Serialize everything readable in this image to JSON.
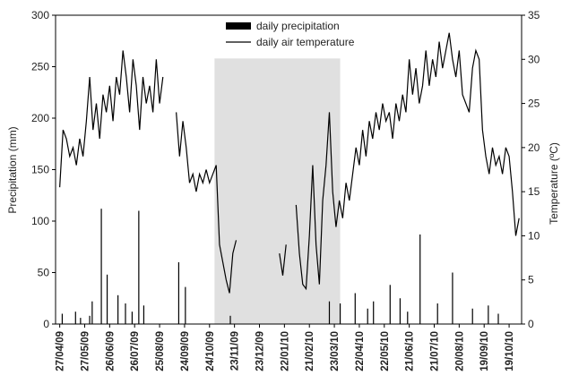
{
  "chart_data": {
    "type": "bar-line",
    "ylabel": "Precipitation (mm)",
    "y2label": "Temperature (ºC)",
    "xlim": [
      -5,
      555
    ],
    "xticks": [
      {
        "value": 0,
        "label": "27/04/09"
      },
      {
        "value": 30,
        "label": "27/05/09"
      },
      {
        "value": 60,
        "label": "26/06/09"
      },
      {
        "value": 90,
        "label": "26/07/09"
      },
      {
        "value": 120,
        "label": "25/08/09"
      },
      {
        "value": 150,
        "label": "24/09/09"
      },
      {
        "value": 180,
        "label": "24/10/09"
      },
      {
        "value": 210,
        "label": "23/11/09"
      },
      {
        "value": 240,
        "label": "23/12/09"
      },
      {
        "value": 270,
        "label": "22/01/10"
      },
      {
        "value": 300,
        "label": "21/02/10"
      },
      {
        "value": 330,
        "label": "23/03/10"
      },
      {
        "value": 360,
        "label": "22/04/10"
      },
      {
        "value": 390,
        "label": "22/05/10"
      },
      {
        "value": 420,
        "label": "21/06/10"
      },
      {
        "value": 450,
        "label": "21/07/10"
      },
      {
        "value": 480,
        "label": "20/08/10"
      },
      {
        "value": 510,
        "label": "19/09/10"
      },
      {
        "value": 540,
        "label": "19/10/10"
      }
    ],
    "ylim": [
      0,
      300
    ],
    "yticks": [
      0,
      50,
      100,
      150,
      200,
      250,
      300
    ],
    "y2lim": [
      0,
      35
    ],
    "y2ticks": [
      0,
      5,
      10,
      15,
      20,
      25,
      30,
      35
    ],
    "shaded_region": {
      "x": [
        186,
        337
      ],
      "y": [
        0,
        258
      ],
      "color": "#e0e0e0"
    },
    "legend": "top-center",
    "series": [
      {
        "name": "daily precipitation",
        "type": "bar",
        "color": "#000000",
        "x": [
          3,
          19,
          25,
          36,
          39,
          50,
          57,
          70,
          79,
          87,
          95,
          101,
          143,
          151,
          205,
          324,
          337,
          355,
          370,
          377,
          397,
          409,
          418,
          433,
          454,
          472,
          496,
          515,
          527
        ],
        "values": [
          10,
          12,
          6,
          8,
          22,
          112,
          48,
          28,
          20,
          12,
          110,
          18,
          60,
          36,
          8,
          22,
          20,
          30,
          15,
          22,
          38,
          25,
          12,
          87,
          20,
          50,
          15,
          18,
          10
        ]
      },
      {
        "name": "daily air temperature",
        "type": "line",
        "axis": "y2",
        "color": "#000000",
        "x": [
          0,
          4,
          8,
          12,
          16,
          20,
          24,
          28,
          32,
          36,
          40,
          44,
          48,
          52,
          56,
          60,
          64,
          68,
          72,
          76,
          80,
          84,
          88,
          92,
          96,
          100,
          104,
          108,
          112,
          116,
          120,
          124,
          128,
          132,
          136,
          140,
          144,
          148,
          152,
          156,
          160,
          164,
          168,
          172,
          176,
          180,
          184,
          188,
          192,
          196,
          200,
          204,
          208,
          212,
          216,
          220,
          224,
          228,
          232,
          236,
          240,
          244,
          248,
          252,
          256,
          260,
          264,
          268,
          272,
          276,
          280,
          284,
          288,
          292,
          296,
          300,
          304,
          308,
          312,
          316,
          320,
          324,
          328,
          332,
          336,
          340,
          344,
          348,
          352,
          356,
          360,
          364,
          368,
          372,
          376,
          380,
          384,
          388,
          392,
          396,
          400,
          404,
          408,
          412,
          416,
          420,
          424,
          428,
          432,
          436,
          440,
          444,
          448,
          452,
          456,
          460,
          464,
          468,
          472,
          476,
          480,
          484,
          488,
          492,
          496,
          500,
          504,
          508,
          512,
          516,
          520,
          524,
          528,
          532,
          536,
          540,
          544,
          548,
          552
        ],
        "values": [
          15.5,
          22,
          21,
          19,
          20,
          18,
          21,
          19,
          23,
          28,
          22,
          25,
          21,
          26,
          24,
          27,
          23,
          28,
          26,
          31,
          28,
          24,
          30,
          27,
          22,
          28,
          25,
          27,
          24,
          30,
          25,
          28,
          null,
          null,
          null,
          24,
          19,
          23,
          20,
          16,
          17,
          15,
          17,
          16,
          17.5,
          16,
          17,
          18,
          9,
          7,
          5,
          3.5,
          8,
          9.5,
          null,
          null,
          null,
          null,
          null,
          null,
          null,
          null,
          null,
          null,
          null,
          null,
          8,
          5.5,
          9,
          null,
          null,
          13.5,
          8,
          4.5,
          4,
          10,
          18,
          9,
          4.5,
          14,
          18,
          24,
          15,
          11,
          14,
          12,
          16,
          14,
          17,
          20,
          18,
          22,
          19,
          23,
          21,
          24,
          22,
          25,
          23,
          24,
          21,
          25,
          23,
          26,
          24,
          30,
          26,
          29,
          25,
          27,
          31,
          27,
          30,
          28,
          32,
          29,
          31,
          33,
          30,
          28,
          31,
          26,
          25,
          24,
          29,
          31,
          30,
          22,
          19,
          17,
          20,
          18,
          19,
          17,
          20,
          19,
          15,
          10,
          12
        ]
      }
    ]
  }
}
